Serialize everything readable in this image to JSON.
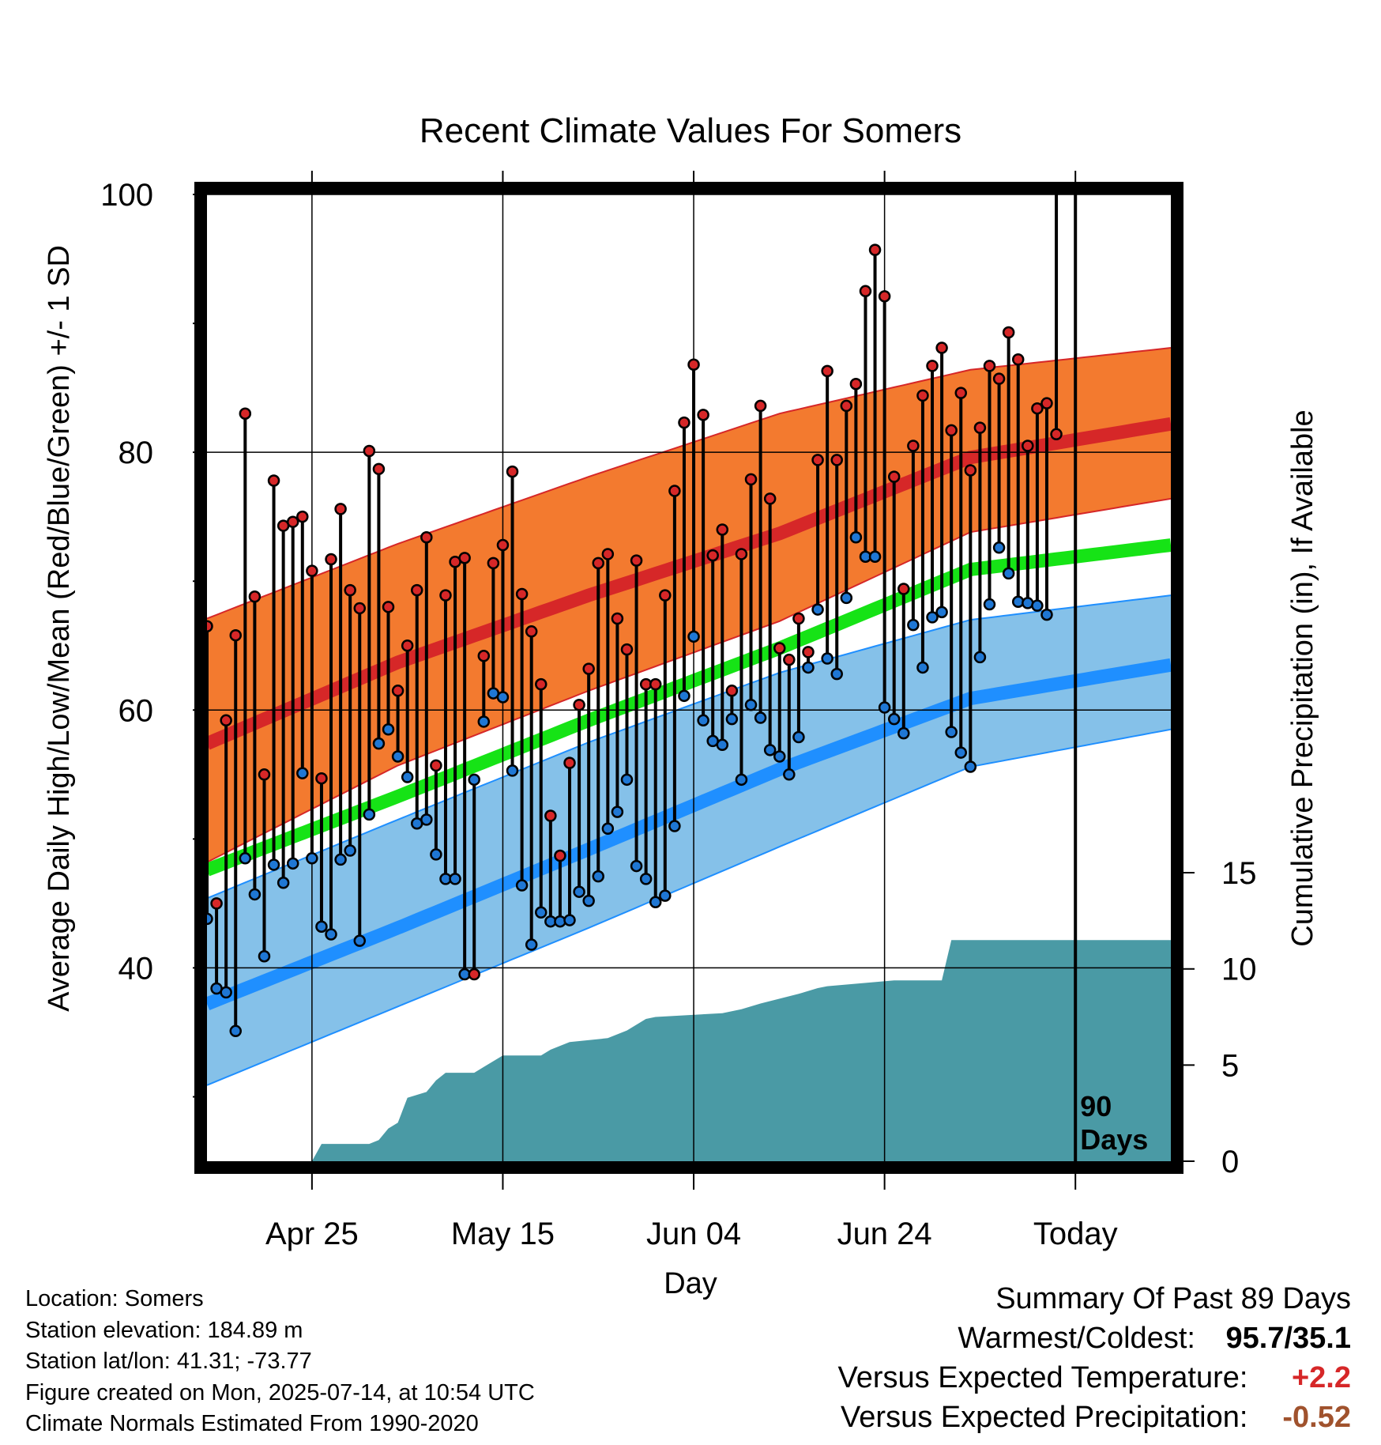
{
  "chart_data": {
    "type": "line",
    "title": "Recent Climate Values For Somers",
    "xlabel": "Day",
    "ylabel": "Average Daily High/Low/Mean (Red/Blue/Green) +/- 1 SD",
    "y2label": "Cumulative Precipitation (in), If Available",
    "x_range_days": [
      0,
      101
    ],
    "today_day": 90,
    "ylim": [
      25,
      100
    ],
    "y_ticks": [
      "100",
      "80",
      "60",
      "40"
    ],
    "y2lim": [
      0,
      40
    ],
    "y2_ticks": [
      "15",
      "10",
      "5",
      "0"
    ],
    "x_ticks": [
      {
        "day": 11,
        "label": "Apr 25"
      },
      {
        "day": 31,
        "label": "May 15"
      },
      {
        "day": 51,
        "label": "Jun 04"
      },
      {
        "day": 71,
        "label": "Jun 24"
      },
      {
        "day": 91,
        "label": "Today"
      }
    ],
    "today_label": [
      "90",
      "Days"
    ],
    "grid": true,
    "normals": {
      "days": [
        0,
        20,
        40,
        60,
        80,
        101
      ],
      "high_plus_sd": [
        67.1,
        72.9,
        78.1,
        83.0,
        86.4,
        88.1
      ],
      "high": [
        57.4,
        63.7,
        68.9,
        73.7,
        79.6,
        82.2
      ],
      "high_minus_sd": [
        48.2,
        55.7,
        61.5,
        66.9,
        73.8,
        76.4
      ],
      "mean": [
        47.6,
        53.3,
        59.2,
        64.8,
        70.9,
        72.8
      ],
      "low_plus_sd": [
        45.4,
        51.5,
        57.5,
        62.9,
        67.0,
        68.9
      ],
      "low": [
        37.2,
        43.1,
        49.2,
        55.4,
        60.9,
        63.5
      ],
      "low_minus_sd": [
        30.9,
        37.0,
        43.1,
        49.4,
        55.6,
        58.5
      ]
    },
    "series": [
      {
        "name": "High",
        "color": "#d62728",
        "values": [
          66.5,
          45.0,
          59.2,
          65.8,
          83.0,
          68.8,
          55.0,
          77.8,
          74.3,
          74.6,
          75.0,
          70.8,
          54.7,
          71.7,
          75.6,
          69.3,
          67.9,
          80.1,
          78.7,
          68.0,
          61.5,
          65.0,
          69.3,
          73.4,
          55.7,
          68.9,
          71.5,
          71.8,
          39.5,
          64.2,
          71.4,
          72.8,
          78.5,
          69.0,
          66.1,
          62.0,
          51.8,
          48.7,
          55.9,
          60.4,
          63.2,
          71.4,
          72.1,
          67.1,
          64.7,
          71.6,
          62.0,
          62.0,
          68.9,
          77.0,
          82.3,
          86.8,
          82.9,
          72.0,
          74.0,
          61.5,
          72.1,
          77.9,
          83.6,
          76.4,
          64.8,
          63.9,
          67.1,
          64.5,
          79.4,
          86.3,
          79.4,
          83.6,
          85.3,
          92.5,
          95.7,
          92.1,
          78.1,
          69.4,
          80.5,
          84.4,
          86.7,
          88.1,
          81.7,
          84.6,
          78.6,
          81.9,
          86.7,
          85.7,
          89.3,
          87.2,
          80.5,
          83.4,
          83.8,
          81.4
        ]
      },
      {
        "name": "Low",
        "color": "#1f77d4",
        "values": [
          43.8,
          38.4,
          38.1,
          35.1,
          48.5,
          45.7,
          40.9,
          48.0,
          46.6,
          48.1,
          55.1,
          48.5,
          43.2,
          42.6,
          48.4,
          49.1,
          42.1,
          51.9,
          57.4,
          58.5,
          56.4,
          54.8,
          51.2,
          51.5,
          48.8,
          46.9,
          46.9,
          39.5,
          54.6,
          59.1,
          61.3,
          61.0,
          55.3,
          46.4,
          41.8,
          44.3,
          43.6,
          43.6,
          43.7,
          45.9,
          45.2,
          47.1,
          50.8,
          52.1,
          54.6,
          47.9,
          46.9,
          45.1,
          45.6,
          51.0,
          61.1,
          65.7,
          59.2,
          57.6,
          57.3,
          59.3,
          54.6,
          60.4,
          59.4,
          56.9,
          56.4,
          55.0,
          57.9,
          63.3,
          67.8,
          64.0,
          62.8,
          68.7,
          73.4,
          71.9,
          71.9,
          60.2,
          59.3,
          58.2,
          66.6,
          63.3,
          67.2,
          67.6,
          58.3,
          56.7,
          55.6,
          64.1,
          68.2,
          72.6,
          70.6,
          68.4,
          68.3,
          68.1,
          67.4
        ]
      }
    ],
    "precip_cumulative": {
      "days": [
        0,
        11,
        12,
        17,
        18,
        19,
        20,
        21,
        23,
        24,
        25,
        28,
        29,
        31,
        35,
        36,
        38,
        42,
        44,
        46,
        47,
        54,
        56,
        58,
        62,
        64,
        65,
        72,
        77,
        78,
        88,
        101
      ],
      "values": [
        0,
        0,
        0.9,
        0.9,
        1.1,
        1.7,
        2.0,
        3.3,
        3.6,
        4.2,
        4.6,
        4.6,
        4.9,
        5.5,
        5.5,
        5.8,
        6.2,
        6.4,
        6.8,
        7.4,
        7.5,
        7.7,
        7.9,
        8.2,
        8.7,
        9.0,
        9.1,
        9.4,
        9.4,
        11.5,
        11.5,
        11.5
      ]
    },
    "precip_color": "#4a9aa5",
    "legend": "none"
  },
  "footer": {
    "location": "Location: Somers",
    "elevation": "Station elevation: 184.89 m",
    "latlon": "Station lat/lon: 41.31; -73.77",
    "created": "Figure created on Mon, 2025-07-14, at 10:54 UTC",
    "normals": "Climate Normals Estimated From 1990-2020"
  },
  "summary": {
    "heading": "Summary Of Past 89 Days",
    "warm_cold_label": "Warmest/Coldest:",
    "warm_cold_value": "95.7/35.1",
    "temp_label": "Versus Expected Temperature:",
    "temp_value": "+2.2",
    "temp_color": "#d62728",
    "precip_label": "Versus Expected Precipitation:",
    "precip_value": "-0.52",
    "precip_color": "#a0522d"
  }
}
